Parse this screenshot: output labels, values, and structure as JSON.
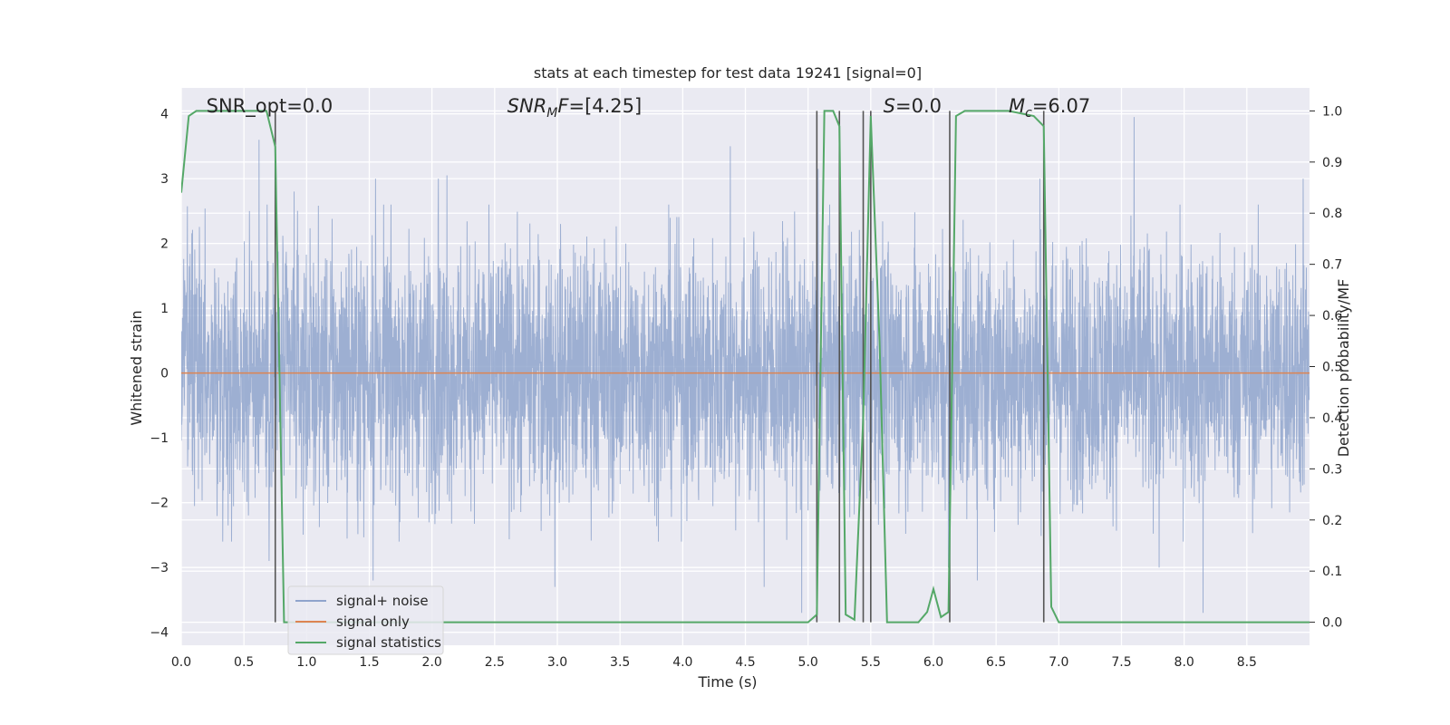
{
  "chart_data": {
    "type": "line",
    "title": "stats at each timestep for test data 19241 [signal=0]",
    "xlabel": "Time (s)",
    "ylabel": "Whitened strain",
    "ylabel_right": "Detection probability/MF",
    "xlim": [
      0.0,
      9.0
    ],
    "ylim": [
      -4.2,
      4.4
    ],
    "ylim_right": [
      -0.045,
      1.045
    ],
    "x_ticks": [
      0.0,
      0.5,
      1.0,
      1.5,
      2.0,
      2.5,
      3.0,
      3.5,
      4.0,
      4.5,
      5.0,
      5.5,
      6.0,
      6.5,
      7.0,
      7.5,
      8.0,
      8.5
    ],
    "x_tick_labels": [
      "0.0",
      "0.5",
      "1.0",
      "1.5",
      "2.0",
      "2.5",
      "3.0",
      "3.5",
      "4.0",
      "4.5",
      "5.0",
      "5.5",
      "6.0",
      "6.5",
      "7.0",
      "7.5",
      "8.0",
      "8.5"
    ],
    "y_ticks": [
      4,
      3,
      2,
      1,
      0,
      -1,
      -2,
      -3,
      -4
    ],
    "y_tick_labels": [
      "4",
      "3",
      "2",
      "1",
      "0",
      "−1",
      "−2",
      "−3",
      "−4"
    ],
    "y_ticks_right": [
      1.0,
      0.9,
      0.8,
      0.7,
      0.6,
      0.5,
      0.4,
      0.3,
      0.2,
      0.1,
      0.0
    ],
    "y_tick_labels_right": [
      "1.0",
      "0.9",
      "0.8",
      "0.7",
      "0.6",
      "0.5",
      "0.4",
      "0.3",
      "0.2",
      "0.1",
      "0.0"
    ],
    "grid": true,
    "legend_position": "lower-left",
    "annotations": [
      {
        "text": "SNR_opt=0.0",
        "x": 0.2
      },
      {
        "text": "SNR_MF=[4.25]",
        "x": 2.6
      },
      {
        "text": "S=0.0",
        "x": 5.6
      },
      {
        "text": "M_c=6.07",
        "x": 6.6
      }
    ],
    "vertical_lines_x": [
      0.75,
      5.07,
      5.25,
      5.44,
      5.5,
      6.13,
      6.88
    ],
    "series": [
      {
        "name": "signal+ noise",
        "axis": "left",
        "color": "#8fa4cc",
        "kind": "noise",
        "typical_range": [
          -1.8,
          1.8
        ],
        "peaks": [
          [
            0.62,
            3.6
          ],
          [
            0.7,
            -2.9
          ],
          [
            0.9,
            2.8
          ],
          [
            1.53,
            -3.2
          ],
          [
            1.55,
            3.0
          ],
          [
            2.05,
            3.0
          ],
          [
            2.12,
            3.05
          ],
          [
            2.98,
            -3.3
          ],
          [
            4.38,
            3.5
          ],
          [
            4.65,
            -3.3
          ],
          [
            4.95,
            -3.7
          ],
          [
            5.08,
            3.15
          ],
          [
            5.5,
            3.0
          ],
          [
            6.12,
            -3.0
          ],
          [
            6.35,
            -3.2
          ],
          [
            6.85,
            3.0
          ],
          [
            7.6,
            3.95
          ],
          [
            7.8,
            -3.0
          ],
          [
            8.15,
            -3.7
          ],
          [
            8.95,
            3.0
          ]
        ]
      },
      {
        "name": "signal only",
        "axis": "left",
        "color": "#dd8452",
        "x": [
          0.0,
          9.0
        ],
        "y": [
          0.0,
          0.0
        ]
      },
      {
        "name": "signal statistics",
        "axis": "right",
        "color": "#55a868",
        "x": [
          0.0,
          0.06,
          0.12,
          0.2,
          0.3,
          0.4,
          0.5,
          0.6,
          0.68,
          0.75,
          0.82,
          0.9,
          1.0,
          2.0,
          3.0,
          4.0,
          4.5,
          5.0,
          5.07,
          5.13,
          5.2,
          5.25,
          5.3,
          5.37,
          5.44,
          5.5,
          5.57,
          5.63,
          5.7,
          5.8,
          5.88,
          5.95,
          6.0,
          6.06,
          6.12,
          6.18,
          6.25,
          6.4,
          6.6,
          6.8,
          6.88,
          6.94,
          7.0,
          7.3,
          7.6,
          8.0,
          8.5,
          9.0
        ],
        "y": [
          0.84,
          0.99,
          1.0,
          1.0,
          1.0,
          1.0,
          1.0,
          1.0,
          1.0,
          0.93,
          0.0,
          0.0,
          0.0,
          0.0,
          0.0,
          0.0,
          0.0,
          0.0,
          0.015,
          1.0,
          1.0,
          0.97,
          0.015,
          0.005,
          0.4,
          0.99,
          0.55,
          0.0,
          0.0,
          0.0,
          0.0,
          0.02,
          0.065,
          0.01,
          0.02,
          0.99,
          1.0,
          1.0,
          1.0,
          0.99,
          0.97,
          0.03,
          0.0,
          0.0,
          0.0,
          0.0,
          0.0,
          0.0
        ]
      }
    ]
  }
}
